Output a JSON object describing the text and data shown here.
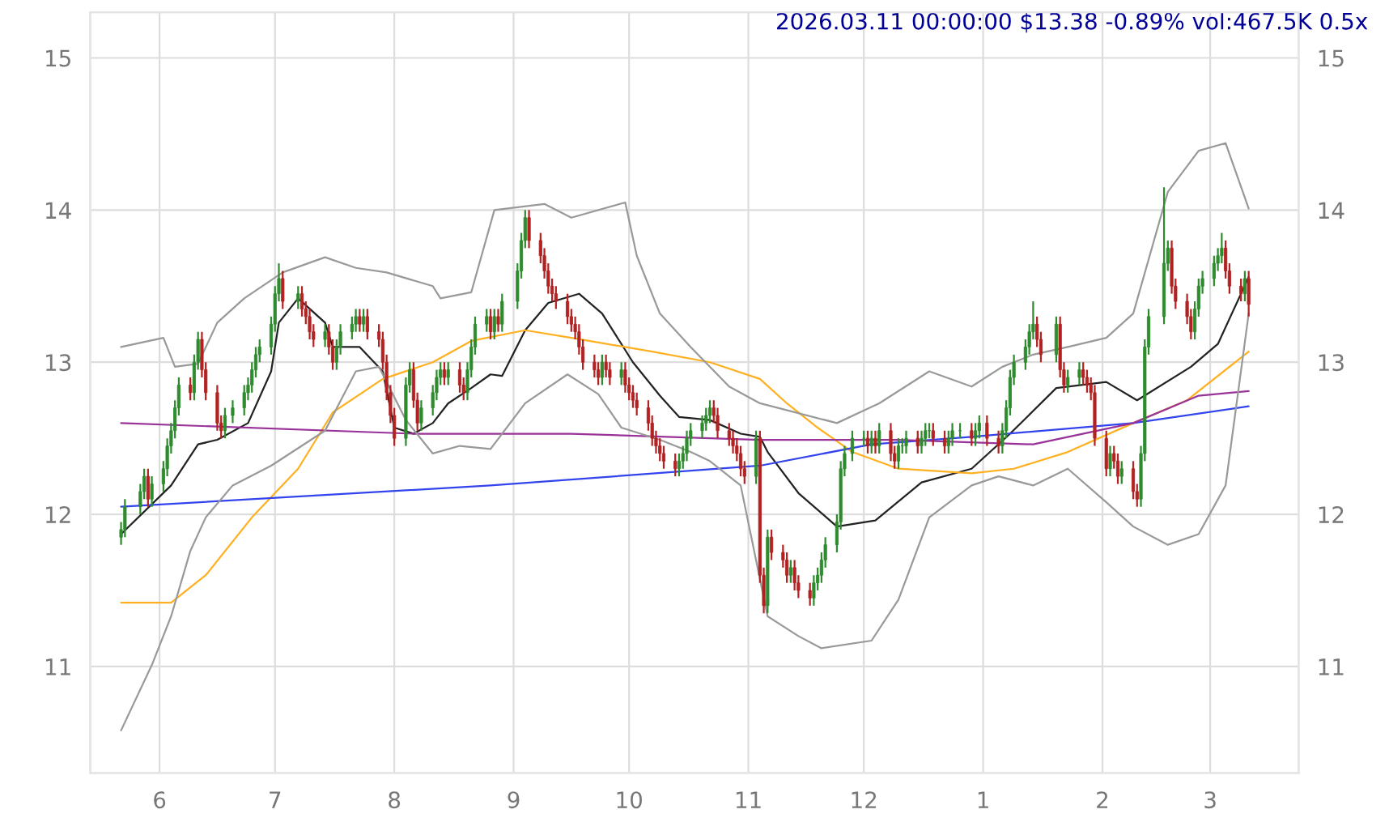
{
  "chart_data": {
    "type": "candlestick",
    "title": "2026.03.11 00:00:00 $13.38 -0.89% vol:467.5K 0.5x",
    "x": [
      "2025-05-22",
      "2025-05-23",
      "2025-05-27",
      "2025-05-28",
      "2025-05-29",
      "2025-05-30",
      "2025-06-02",
      "2025-06-03",
      "2025-06-04",
      "2025-06-05",
      "2025-06-06",
      "2025-06-09",
      "2025-06-10",
      "2025-06-11",
      "2025-06-12",
      "2025-06-13",
      "2025-06-16",
      "2025-06-17",
      "2025-06-18",
      "2025-06-20",
      "2025-06-23",
      "2025-06-24",
      "2025-06-25",
      "2025-06-26",
      "2025-06-27",
      "2025-06-30",
      "2025-07-01",
      "2025-07-02",
      "2025-07-03",
      "2025-07-07",
      "2025-07-08",
      "2025-07-09",
      "2025-07-10",
      "2025-07-11",
      "2025-07-14",
      "2025-07-15",
      "2025-07-16",
      "2025-07-17",
      "2025-07-18",
      "2025-07-21",
      "2025-07-22",
      "2025-07-23",
      "2025-07-24",
      "2025-07-25",
      "2025-07-28",
      "2025-07-29",
      "2025-07-30",
      "2025-07-31",
      "2025-08-01",
      "2025-08-04",
      "2025-08-05",
      "2025-08-06",
      "2025-08-07",
      "2025-08-08",
      "2025-08-11",
      "2025-08-12",
      "2025-08-13",
      "2025-08-14",
      "2025-08-15",
      "2025-08-18",
      "2025-08-19",
      "2025-08-20",
      "2025-08-21",
      "2025-08-22",
      "2025-08-25",
      "2025-08-26",
      "2025-08-27",
      "2025-08-28",
      "2025-08-29",
      "2025-09-02",
      "2025-09-03",
      "2025-09-04",
      "2025-09-05",
      "2025-09-08",
      "2025-09-09",
      "2025-09-10",
      "2025-09-11",
      "2025-09-12",
      "2025-09-15",
      "2025-09-16",
      "2025-09-17",
      "2025-09-18",
      "2025-09-19",
      "2025-09-22",
      "2025-09-23",
      "2025-09-24",
      "2025-09-25",
      "2025-09-26",
      "2025-09-29",
      "2025-09-30",
      "2025-10-01",
      "2025-10-02",
      "2025-10-03",
      "2025-10-06",
      "2025-10-07",
      "2025-10-08",
      "2025-10-09",
      "2025-10-10",
      "2025-10-13",
      "2025-10-14",
      "2025-10-15",
      "2025-10-16",
      "2025-10-17",
      "2025-10-20",
      "2025-10-21",
      "2025-10-22",
      "2025-10-23",
      "2025-10-24",
      "2025-10-27",
      "2025-10-28",
      "2025-10-29",
      "2025-10-30",
      "2025-10-31",
      "2025-11-03",
      "2025-11-04",
      "2025-11-05",
      "2025-11-06",
      "2025-11-07",
      "2025-11-10",
      "2025-11-11",
      "2025-11-12",
      "2025-11-13",
      "2025-11-14",
      "2025-11-17",
      "2025-11-18",
      "2025-11-19",
      "2025-11-20",
      "2025-11-21",
      "2025-11-24",
      "2025-11-25",
      "2025-11-26",
      "2025-11-28",
      "2025-12-01",
      "2025-12-02",
      "2025-12-03",
      "2025-12-04",
      "2025-12-05",
      "2025-12-08",
      "2025-12-09",
      "2025-12-10",
      "2025-12-11",
      "2025-12-12",
      "2025-12-15",
      "2025-12-16",
      "2025-12-17",
      "2025-12-18",
      "2025-12-19",
      "2025-12-22",
      "2025-12-23",
      "2025-12-24",
      "2025-12-26",
      "2025-12-29",
      "2025-12-30",
      "2025-12-31",
      "2026-01-02",
      "2026-01-05",
      "2026-01-06",
      "2026-01-07",
      "2026-01-08",
      "2026-01-09",
      "2026-01-12",
      "2026-01-13",
      "2026-01-14",
      "2026-01-15",
      "2026-01-16",
      "2026-01-20",
      "2026-01-21",
      "2026-01-22",
      "2026-01-23",
      "2026-01-26",
      "2026-01-27",
      "2026-01-28",
      "2026-01-29",
      "2026-01-30",
      "2026-02-02",
      "2026-02-03",
      "2026-02-04",
      "2026-02-05",
      "2026-02-06",
      "2026-02-09",
      "2026-02-10",
      "2026-02-11",
      "2026-02-12",
      "2026-02-13",
      "2026-02-17",
      "2026-02-18",
      "2026-02-19",
      "2026-02-20",
      "2026-02-23",
      "2026-02-24",
      "2026-02-25",
      "2026-02-26",
      "2026-02-27",
      "2026-03-02",
      "2026-03-03",
      "2026-03-04",
      "2026-03-05",
      "2026-03-06",
      "2026-03-09",
      "2026-03-10",
      "2026-03-11"
    ],
    "ohlc": [
      [
        11.85,
        11.95,
        11.8,
        11.9
      ],
      [
        11.9,
        12.1,
        11.85,
        12.05
      ],
      [
        12.05,
        12.2,
        12.0,
        12.15
      ],
      [
        12.15,
        12.3,
        12.1,
        12.25
      ],
      [
        12.25,
        12.3,
        12.05,
        12.1
      ],
      [
        12.1,
        12.25,
        12.05,
        12.2
      ],
      [
        12.2,
        12.35,
        12.15,
        12.3
      ],
      [
        12.3,
        12.5,
        12.25,
        12.45
      ],
      [
        12.45,
        12.6,
        12.4,
        12.55
      ],
      [
        12.55,
        12.75,
        12.5,
        12.7
      ],
      [
        12.7,
        12.9,
        12.65,
        12.85
      ],
      [
        12.85,
        12.9,
        12.75,
        12.8
      ],
      [
        12.8,
        13.05,
        12.75,
        13.0
      ],
      [
        13.0,
        13.2,
        12.95,
        13.15
      ],
      [
        13.15,
        13.2,
        12.9,
        12.95
      ],
      [
        12.95,
        13.0,
        12.75,
        12.8
      ],
      [
        12.8,
        12.85,
        12.55,
        12.6
      ],
      [
        12.6,
        12.65,
        12.5,
        12.55
      ],
      [
        12.55,
        12.7,
        12.5,
        12.65
      ],
      [
        12.65,
        12.75,
        12.6,
        12.7
      ],
      [
        12.7,
        12.85,
        12.65,
        12.8
      ],
      [
        12.8,
        12.9,
        12.75,
        12.85
      ],
      [
        12.85,
        13.0,
        12.8,
        12.95
      ],
      [
        12.95,
        13.1,
        12.9,
        13.05
      ],
      [
        13.05,
        13.15,
        13.0,
        13.1
      ],
      [
        13.1,
        13.3,
        13.05,
        13.25
      ],
      [
        13.25,
        13.5,
        13.2,
        13.45
      ],
      [
        13.45,
        13.65,
        13.4,
        13.55
      ],
      [
        13.55,
        13.6,
        13.35,
        13.4
      ],
      [
        13.4,
        13.5,
        13.35,
        13.45
      ],
      [
        13.45,
        13.5,
        13.3,
        13.35
      ],
      [
        13.35,
        13.4,
        13.25,
        13.3
      ],
      [
        13.3,
        13.35,
        13.15,
        13.2
      ],
      [
        13.2,
        13.25,
        13.1,
        13.15
      ],
      [
        13.15,
        13.25,
        13.1,
        13.2
      ],
      [
        13.2,
        13.25,
        13.05,
        13.1
      ],
      [
        13.1,
        13.15,
        12.95,
        13.0
      ],
      [
        13.0,
        13.15,
        12.95,
        13.1
      ],
      [
        13.1,
        13.25,
        13.05,
        13.2
      ],
      [
        13.2,
        13.3,
        13.15,
        13.25
      ],
      [
        13.25,
        13.35,
        13.2,
        13.3
      ],
      [
        13.3,
        13.35,
        13.2,
        13.25
      ],
      [
        13.25,
        13.35,
        13.2,
        13.3
      ],
      [
        13.3,
        13.35,
        13.15,
        13.2
      ],
      [
        13.2,
        13.25,
        13.1,
        13.15
      ],
      [
        13.15,
        13.2,
        12.95,
        13.0
      ],
      [
        13.0,
        13.05,
        12.75,
        12.8
      ],
      [
        12.8,
        12.85,
        12.6,
        12.65
      ],
      [
        12.65,
        12.7,
        12.45,
        12.5
      ],
      [
        12.5,
        12.9,
        12.45,
        12.85
      ],
      [
        12.85,
        13.0,
        12.8,
        12.95
      ],
      [
        12.95,
        13.0,
        12.7,
        12.75
      ],
      [
        12.75,
        12.8,
        12.55,
        12.6
      ],
      [
        12.6,
        12.75,
        12.55,
        12.7
      ],
      [
        12.7,
        12.85,
        12.65,
        12.8
      ],
      [
        12.8,
        12.95,
        12.75,
        12.9
      ],
      [
        12.9,
        13.0,
        12.85,
        12.95
      ],
      [
        12.95,
        13.0,
        12.85,
        12.9
      ],
      [
        12.9,
        13.0,
        12.85,
        12.95
      ],
      [
        12.95,
        13.0,
        12.8,
        12.85
      ],
      [
        12.85,
        12.9,
        12.75,
        12.8
      ],
      [
        12.8,
        13.0,
        12.75,
        12.95
      ],
      [
        12.95,
        13.15,
        12.9,
        13.1
      ],
      [
        13.1,
        13.3,
        13.05,
        13.25
      ],
      [
        13.25,
        13.35,
        13.2,
        13.3
      ],
      [
        13.3,
        13.35,
        13.15,
        13.2
      ],
      [
        13.2,
        13.35,
        13.15,
        13.3
      ],
      [
        13.3,
        13.35,
        13.2,
        13.25
      ],
      [
        13.25,
        13.45,
        13.2,
        13.4
      ],
      [
        13.4,
        13.65,
        13.35,
        13.6
      ],
      [
        13.6,
        13.85,
        13.55,
        13.8
      ],
      [
        13.8,
        14.0,
        13.75,
        13.95
      ],
      [
        13.95,
        14.0,
        13.75,
        13.8
      ],
      [
        13.8,
        13.85,
        13.65,
        13.7
      ],
      [
        13.7,
        13.75,
        13.55,
        13.6
      ],
      [
        13.6,
        13.65,
        13.45,
        13.5
      ],
      [
        13.5,
        13.55,
        13.4,
        13.45
      ],
      [
        13.45,
        13.5,
        13.35,
        13.4
      ],
      [
        13.4,
        13.45,
        13.25,
        13.3
      ],
      [
        13.3,
        13.35,
        13.2,
        13.25
      ],
      [
        13.25,
        13.3,
        13.15,
        13.2
      ],
      [
        13.2,
        13.25,
        13.05,
        13.1
      ],
      [
        13.1,
        13.15,
        12.95,
        13.0
      ],
      [
        13.0,
        13.05,
        12.9,
        12.95
      ],
      [
        12.95,
        13.0,
        12.85,
        12.9
      ],
      [
        12.9,
        13.05,
        12.85,
        13.0
      ],
      [
        13.0,
        13.05,
        12.9,
        12.95
      ],
      [
        12.95,
        13.0,
        12.85,
        12.9
      ],
      [
        12.9,
        13.0,
        12.85,
        12.95
      ],
      [
        12.95,
        13.0,
        12.8,
        12.85
      ],
      [
        12.85,
        12.9,
        12.75,
        12.8
      ],
      [
        12.8,
        12.85,
        12.7,
        12.75
      ],
      [
        12.75,
        12.8,
        12.65,
        12.7
      ],
      [
        12.7,
        12.75,
        12.55,
        12.6
      ],
      [
        12.6,
        12.65,
        12.45,
        12.5
      ],
      [
        12.5,
        12.55,
        12.4,
        12.45
      ],
      [
        12.45,
        12.5,
        12.35,
        12.4
      ],
      [
        12.4,
        12.45,
        12.3,
        12.35
      ],
      [
        12.35,
        12.4,
        12.25,
        12.3
      ],
      [
        12.3,
        12.4,
        12.25,
        12.35
      ],
      [
        12.35,
        12.45,
        12.3,
        12.4
      ],
      [
        12.4,
        12.55,
        12.35,
        12.5
      ],
      [
        12.5,
        12.6,
        12.45,
        12.55
      ],
      [
        12.55,
        12.65,
        12.5,
        12.6
      ],
      [
        12.6,
        12.7,
        12.55,
        12.65
      ],
      [
        12.65,
        12.75,
        12.6,
        12.7
      ],
      [
        12.7,
        12.75,
        12.6,
        12.65
      ],
      [
        12.65,
        12.7,
        12.5,
        12.55
      ],
      [
        12.55,
        12.6,
        12.45,
        12.5
      ],
      [
        12.5,
        12.55,
        12.4,
        12.45
      ],
      [
        12.45,
        12.5,
        12.35,
        12.4
      ],
      [
        12.4,
        12.45,
        12.25,
        12.3
      ],
      [
        12.3,
        12.35,
        12.2,
        12.25
      ],
      [
        12.25,
        12.55,
        12.2,
        12.5
      ],
      [
        12.5,
        12.55,
        11.55,
        11.6
      ],
      [
        11.6,
        11.65,
        11.35,
        11.4
      ],
      [
        11.4,
        11.9,
        11.35,
        11.85
      ],
      [
        11.85,
        11.9,
        11.7,
        11.75
      ],
      [
        11.75,
        11.8,
        11.65,
        11.7
      ],
      [
        11.7,
        11.75,
        11.55,
        11.6
      ],
      [
        11.6,
        11.7,
        11.55,
        11.65
      ],
      [
        11.65,
        11.7,
        11.5,
        11.55
      ],
      [
        11.55,
        11.6,
        11.45,
        11.5
      ],
      [
        11.5,
        11.55,
        11.4,
        11.45
      ],
      [
        11.45,
        11.6,
        11.4,
        11.55
      ],
      [
        11.55,
        11.65,
        11.5,
        11.6
      ],
      [
        11.6,
        11.75,
        11.55,
        11.7
      ],
      [
        11.7,
        11.85,
        11.65,
        11.8
      ],
      [
        11.8,
        12.0,
        11.75,
        11.95
      ],
      [
        11.95,
        12.35,
        11.9,
        12.3
      ],
      [
        12.3,
        12.45,
        12.25,
        12.4
      ],
      [
        12.4,
        12.55,
        12.35,
        12.5
      ],
      [
        12.5,
        12.55,
        12.45,
        12.5
      ],
      [
        12.5,
        12.55,
        12.4,
        12.45
      ],
      [
        12.45,
        12.55,
        12.4,
        12.5
      ],
      [
        12.5,
        12.55,
        12.4,
        12.45
      ],
      [
        12.45,
        12.6,
        12.4,
        12.55
      ],
      [
        12.55,
        12.6,
        12.35,
        12.4
      ],
      [
        12.4,
        12.45,
        12.3,
        12.35
      ],
      [
        12.35,
        12.5,
        12.3,
        12.45
      ],
      [
        12.45,
        12.5,
        12.4,
        12.45
      ],
      [
        12.45,
        12.55,
        12.4,
        12.5
      ],
      [
        12.5,
        12.55,
        12.4,
        12.45
      ],
      [
        12.45,
        12.55,
        12.4,
        12.5
      ],
      [
        12.5,
        12.6,
        12.45,
        12.55
      ],
      [
        12.55,
        12.6,
        12.5,
        12.55
      ],
      [
        12.55,
        12.6,
        12.45,
        12.5
      ],
      [
        12.5,
        12.55,
        12.4,
        12.45
      ],
      [
        12.45,
        12.55,
        12.4,
        12.5
      ],
      [
        12.5,
        12.6,
        12.45,
        12.55
      ],
      [
        12.55,
        12.6,
        12.5,
        12.55
      ],
      [
        12.55,
        12.6,
        12.45,
        12.5
      ],
      [
        12.5,
        12.6,
        12.45,
        12.55
      ],
      [
        12.55,
        12.65,
        12.5,
        12.6
      ],
      [
        12.6,
        12.65,
        12.45,
        12.5
      ],
      [
        12.5,
        12.55,
        12.4,
        12.45
      ],
      [
        12.45,
        12.6,
        12.4,
        12.55
      ],
      [
        12.55,
        12.75,
        12.5,
        12.7
      ],
      [
        12.7,
        12.95,
        12.65,
        12.9
      ],
      [
        12.9,
        13.05,
        12.85,
        13.0
      ],
      [
        13.0,
        13.15,
        12.95,
        13.1
      ],
      [
        13.1,
        13.25,
        13.05,
        13.2
      ],
      [
        13.2,
        13.4,
        13.15,
        13.25
      ],
      [
        13.25,
        13.3,
        13.1,
        13.15
      ],
      [
        13.15,
        13.2,
        13.0,
        13.05
      ],
      [
        13.05,
        13.3,
        13.0,
        13.25
      ],
      [
        13.25,
        13.3,
        12.9,
        12.95
      ],
      [
        12.95,
        13.0,
        12.8,
        12.85
      ],
      [
        12.85,
        12.95,
        12.8,
        12.9
      ],
      [
        12.9,
        13.0,
        12.85,
        12.95
      ],
      [
        12.95,
        13.0,
        12.85,
        12.9
      ],
      [
        12.9,
        12.95,
        12.8,
        12.85
      ],
      [
        12.85,
        12.9,
        12.75,
        12.8
      ],
      [
        12.8,
        12.85,
        12.45,
        12.5
      ],
      [
        12.5,
        12.55,
        12.25,
        12.3
      ],
      [
        12.3,
        12.45,
        12.25,
        12.4
      ],
      [
        12.4,
        12.45,
        12.3,
        12.35
      ],
      [
        12.35,
        12.4,
        12.2,
        12.25
      ],
      [
        12.25,
        12.35,
        12.2,
        12.3
      ],
      [
        12.3,
        12.35,
        12.1,
        12.15
      ],
      [
        12.15,
        12.2,
        12.05,
        12.1
      ],
      [
        12.1,
        12.45,
        12.05,
        12.4
      ],
      [
        12.4,
        13.15,
        12.35,
        13.1
      ],
      [
        13.1,
        13.35,
        13.05,
        13.3
      ],
      [
        13.3,
        14.15,
        13.25,
        13.65
      ],
      [
        13.65,
        13.8,
        13.6,
        13.75
      ],
      [
        13.75,
        13.8,
        13.45,
        13.5
      ],
      [
        13.5,
        13.55,
        13.35,
        13.4
      ],
      [
        13.4,
        13.45,
        13.25,
        13.3
      ],
      [
        13.3,
        13.35,
        13.15,
        13.2
      ],
      [
        13.2,
        13.4,
        13.15,
        13.35
      ],
      [
        13.35,
        13.55,
        13.3,
        13.5
      ],
      [
        13.5,
        13.6,
        13.45,
        13.55
      ],
      [
        13.55,
        13.7,
        13.5,
        13.65
      ],
      [
        13.65,
        13.75,
        13.6,
        13.7
      ],
      [
        13.7,
        13.85,
        13.65,
        13.75
      ],
      [
        13.75,
        13.8,
        13.55,
        13.6
      ],
      [
        13.6,
        13.65,
        13.45,
        13.5
      ],
      [
        13.5,
        13.55,
        13.4,
        13.45
      ],
      [
        13.45,
        13.6,
        13.4,
        13.55
      ],
      [
        13.55,
        13.6,
        13.3,
        13.38
      ]
    ],
    "series": [
      {
        "type": "line",
        "color": "#222222",
        "x": [
          "2025-05-22",
          "2025-06-04",
          "2025-06-11",
          "2025-06-16",
          "2025-06-24",
          "2025-06-30",
          "2025-07-02",
          "2025-07-07",
          "2025-07-14",
          "2025-07-16",
          "2025-07-23",
          "2025-07-29",
          "2025-08-01",
          "2025-08-06",
          "2025-08-11",
          "2025-08-15",
          "2025-08-21",
          "2025-08-26",
          "2025-08-29",
          "2025-09-04",
          "2025-09-10",
          "2025-09-18",
          "2025-09-24",
          "2025-10-02",
          "2025-10-09",
          "2025-10-14",
          "2025-10-22",
          "2025-10-30",
          "2025-11-04",
          "2025-11-06",
          "2025-11-14",
          "2025-11-24",
          "2025-12-04",
          "2025-12-16",
          "2025-12-29",
          "2026-01-08",
          "2026-01-20",
          "2026-02-02",
          "2026-02-10",
          "2026-02-24",
          "2026-03-03",
          "2026-03-11"
        ],
        "values": [
          11.87,
          12.19,
          12.46,
          12.49,
          12.6,
          12.94,
          13.26,
          13.42,
          13.26,
          13.1,
          13.1,
          12.94,
          12.57,
          12.53,
          12.6,
          12.73,
          12.83,
          12.92,
          12.91,
          13.21,
          13.39,
          13.45,
          13.32,
          13.0,
          12.78,
          12.64,
          12.62,
          12.53,
          12.51,
          12.41,
          12.14,
          11.92,
          11.96,
          12.21,
          12.3,
          12.53,
          12.83,
          12.87,
          12.75,
          12.97,
          13.12,
          13.56
        ]
      },
      {
        "type": "line",
        "color": "#ffb020",
        "x": [
          "2025-05-22",
          "2025-06-04",
          "2025-06-13",
          "2025-06-25",
          "2025-07-07",
          "2025-07-16",
          "2025-07-29",
          "2025-08-11",
          "2025-08-21",
          "2025-09-04",
          "2025-09-16",
          "2025-10-07",
          "2025-10-22",
          "2025-11-04",
          "2025-11-11",
          "2025-11-19",
          "2025-11-28",
          "2025-12-10",
          "2025-12-29",
          "2026-01-09",
          "2026-01-23",
          "2026-02-09",
          "2026-02-23",
          "2026-03-11"
        ],
        "values": [
          11.42,
          11.42,
          11.6,
          11.98,
          12.3,
          12.67,
          12.89,
          13.0,
          13.14,
          13.21,
          13.16,
          13.07,
          13.0,
          12.89,
          12.73,
          12.57,
          12.41,
          12.3,
          12.27,
          12.3,
          12.41,
          12.6,
          12.75,
          13.07
        ]
      },
      {
        "type": "line",
        "color": "#3344ee",
        "x": [
          "2025-05-22",
          "2025-08-26",
          "2025-11-04",
          "2025-12-03",
          "2025-12-29",
          "2026-02-09",
          "2026-03-11"
        ],
        "values": [
          12.05,
          12.19,
          12.32,
          12.46,
          12.51,
          12.6,
          12.71
        ]
      },
      {
        "type": "line",
        "color": "#993399",
        "x": [
          "2025-05-22",
          "2025-08-06",
          "2025-09-16",
          "2025-11-04",
          "2025-12-10",
          "2026-01-14",
          "2026-02-09",
          "2026-02-26",
          "2026-03-11"
        ],
        "values": [
          12.6,
          12.53,
          12.53,
          12.49,
          12.49,
          12.46,
          12.6,
          12.78,
          12.81
        ]
      },
      {
        "type": "line",
        "color": "#999999",
        "x": [
          "2025-05-22",
          "2025-06-02",
          "2025-06-05",
          "2025-06-11",
          "2025-06-16",
          "2025-06-23",
          "2025-07-03",
          "2025-07-14",
          "2025-07-22",
          "2025-07-30",
          "2025-08-11",
          "2025-08-13",
          "2025-08-21",
          "2025-08-27",
          "2025-09-09",
          "2025-09-16",
          "2025-09-30",
          "2025-10-03",
          "2025-10-09",
          "2025-10-17",
          "2025-10-27",
          "2025-11-04",
          "2025-11-24",
          "2025-12-05",
          "2025-12-18",
          "2025-12-29",
          "2026-01-06",
          "2026-01-14",
          "2026-01-23",
          "2026-02-02",
          "2026-02-09",
          "2026-02-18",
          "2026-02-26",
          "2026-03-05",
          "2026-03-11"
        ],
        "values": [
          13.1,
          13.16,
          12.97,
          12.99,
          13.26,
          13.42,
          13.59,
          13.69,
          13.62,
          13.59,
          13.5,
          13.42,
          13.46,
          14.0,
          14.04,
          13.95,
          14.05,
          13.7,
          13.32,
          13.1,
          12.84,
          12.73,
          12.6,
          12.73,
          12.94,
          12.84,
          12.97,
          13.05,
          13.1,
          13.16,
          13.32,
          14.12,
          14.39,
          14.44,
          14.01
        ]
      },
      {
        "type": "line",
        "color": "#999999",
        "x": [
          "2025-05-22",
          "2025-05-30",
          "2025-06-04",
          "2025-06-09",
          "2025-06-13",
          "2025-06-20",
          "2025-06-30",
          "2025-07-14",
          "2025-07-22",
          "2025-07-28",
          "2025-08-04",
          "2025-08-11",
          "2025-08-18",
          "2025-08-26",
          "2025-09-04",
          "2025-09-15",
          "2025-09-23",
          "2025-09-29",
          "2025-10-09",
          "2025-10-17",
          "2025-10-22",
          "2025-10-30",
          "2025-11-06",
          "2025-11-14",
          "2025-11-20",
          "2025-12-03",
          "2025-12-10",
          "2025-12-18",
          "2025-12-29",
          "2026-01-05",
          "2026-01-14",
          "2026-01-23",
          "2026-02-02",
          "2026-02-09",
          "2026-02-18",
          "2026-02-26",
          "2026-03-05",
          "2026-03-11"
        ],
        "values": [
          10.58,
          11.01,
          11.33,
          11.76,
          11.98,
          12.19,
          12.32,
          12.55,
          12.94,
          12.97,
          12.62,
          12.4,
          12.45,
          12.43,
          12.73,
          12.92,
          12.79,
          12.57,
          12.49,
          12.41,
          12.35,
          12.19,
          11.33,
          11.2,
          11.12,
          11.17,
          11.44,
          11.98,
          12.19,
          12.25,
          12.19,
          12.3,
          12.08,
          11.92,
          11.8,
          11.87,
          12.19,
          13.32
        ]
      }
    ],
    "xlim": [
      "2025-05-14",
      "2026-03-24"
    ],
    "xticks": [
      {
        "value": "2025-06-01",
        "label": "6"
      },
      {
        "value": "2025-07-01",
        "label": "7"
      },
      {
        "value": "2025-08-01",
        "label": "8"
      },
      {
        "value": "2025-09-01",
        "label": "9"
      },
      {
        "value": "2025-10-01",
        "label": "10"
      },
      {
        "value": "2025-11-01",
        "label": "11"
      },
      {
        "value": "2025-12-01",
        "label": "12"
      },
      {
        "value": "2026-01-01",
        "label": "1"
      },
      {
        "value": "2026-02-01",
        "label": "2"
      },
      {
        "value": "2026-03-01",
        "label": "3"
      }
    ],
    "ylim": [
      10.3,
      15.3
    ],
    "yticks": [
      11,
      12,
      13,
      14,
      15
    ],
    "y2lim": [
      10.3,
      15.3
    ],
    "y2ticks": [
      11,
      12,
      13,
      14,
      15
    ],
    "grid": true
  }
}
